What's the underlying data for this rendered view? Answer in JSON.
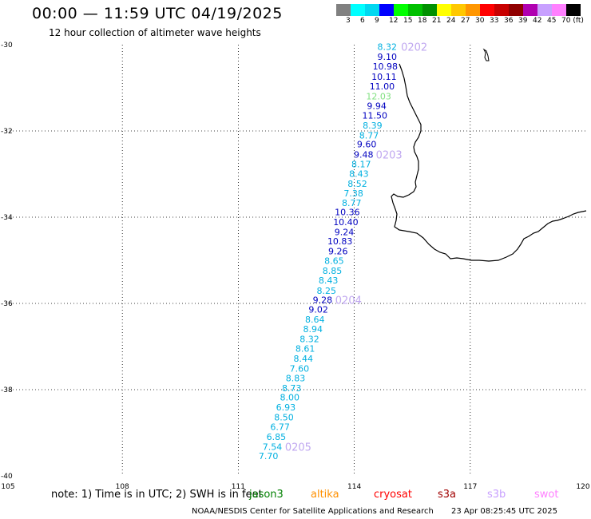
{
  "header": {
    "title": "00:00 — 11:59 UTC 04/19/2025",
    "subtitle": "12 hour collection of altimeter wave heights"
  },
  "color_scale": {
    "colors": [
      "#808080",
      "#00ffff",
      "#00d8f0",
      "#0000ff",
      "#00ff00",
      "#00c000",
      "#009000",
      "#ffff00",
      "#ffc800",
      "#ff9600",
      "#ff0000",
      "#c80000",
      "#900000",
      "#b000b0",
      "#c8a0ff",
      "#ff80ff",
      "#000000"
    ],
    "labels": [
      "3",
      "6",
      "9",
      "12",
      "15",
      "18",
      "21",
      "24",
      "27",
      "30",
      "33",
      "36",
      "39",
      "42",
      "45",
      "70 (ft)"
    ]
  },
  "axes": {
    "lon_labels": [
      "105",
      "108",
      "111",
      "114",
      "117",
      "120"
    ],
    "lat_labels": [
      "-30",
      "-32",
      "-34",
      "-36",
      "-38",
      "-40"
    ]
  },
  "track": {
    "labels": [
      {
        "text": "8.32",
        "color": "#00b0e0",
        "lat": -30.05,
        "lon": 114.85
      },
      {
        "text": "9.10",
        "color": "#0000c0",
        "lat": -30.28,
        "lon": 114.85
      },
      {
        "text": "10.98",
        "color": "#0000c0",
        "lat": -30.5,
        "lon": 114.8
      },
      {
        "text": "10.11",
        "color": "#0000c0",
        "lat": -30.74,
        "lon": 114.77
      },
      {
        "text": "11.00",
        "color": "#0000c0",
        "lat": -30.96,
        "lon": 114.72
      },
      {
        "text": "12.03",
        "color": "#80e080",
        "lat": -31.19,
        "lon": 114.63
      },
      {
        "text": "9.94",
        "color": "#0000c0",
        "lat": -31.42,
        "lon": 114.58
      },
      {
        "text": "11.50",
        "color": "#0000c0",
        "lat": -31.64,
        "lon": 114.53
      },
      {
        "text": "8.39",
        "color": "#00b0e0",
        "lat": -31.87,
        "lon": 114.47
      },
      {
        "text": "8.77",
        "color": "#00b0e0",
        "lat": -32.1,
        "lon": 114.38
      },
      {
        "text": "9.60",
        "color": "#0000c0",
        "lat": -32.31,
        "lon": 114.32
      },
      {
        "text": "9.48",
        "color": "#0000c0",
        "lat": -32.55,
        "lon": 114.24
      },
      {
        "text": "8.17",
        "color": "#00b0e0",
        "lat": -32.77,
        "lon": 114.18
      },
      {
        "text": "8.43",
        "color": "#00b0e0",
        "lat": -32.99,
        "lon": 114.12
      },
      {
        "text": "8.52",
        "color": "#00b0e0",
        "lat": -33.22,
        "lon": 114.08
      },
      {
        "text": "7.38",
        "color": "#00b0e0",
        "lat": -33.44,
        "lon": 113.98
      },
      {
        "text": "8.77",
        "color": "#00b0e0",
        "lat": -33.67,
        "lon": 113.93
      },
      {
        "text": "10.36",
        "color": "#0000c0",
        "lat": -33.88,
        "lon": 113.82
      },
      {
        "text": "10.40",
        "color": "#0000c0",
        "lat": -34.11,
        "lon": 113.78
      },
      {
        "text": "9.24",
        "color": "#0000c0",
        "lat": -34.34,
        "lon": 113.74
      },
      {
        "text": "10.83",
        "color": "#0000c0",
        "lat": -34.56,
        "lon": 113.63
      },
      {
        "text": "9.26",
        "color": "#0000c0",
        "lat": -34.79,
        "lon": 113.58
      },
      {
        "text": "8.65",
        "color": "#00b0e0",
        "lat": -35.01,
        "lon": 113.48
      },
      {
        "text": "8.85",
        "color": "#00b0e0",
        "lat": -35.24,
        "lon": 113.43
      },
      {
        "text": "8.43",
        "color": "#00b0e0",
        "lat": -35.46,
        "lon": 113.33
      },
      {
        "text": "8.25",
        "color": "#00b0e0",
        "lat": -35.7,
        "lon": 113.28
      },
      {
        "text": "9.28",
        "color": "#0000c0",
        "lat": -35.92,
        "lon": 113.18
      },
      {
        "text": "9.02",
        "color": "#0000c0",
        "lat": -36.14,
        "lon": 113.07
      },
      {
        "text": "8.64",
        "color": "#00b0e0",
        "lat": -36.37,
        "lon": 112.98
      },
      {
        "text": "8.94",
        "color": "#00b0e0",
        "lat": -36.59,
        "lon": 112.93
      },
      {
        "text": "8.32",
        "color": "#00b0e0",
        "lat": -36.82,
        "lon": 112.84
      },
      {
        "text": "8.61",
        "color": "#00b0e0",
        "lat": -37.05,
        "lon": 112.73
      },
      {
        "text": "8.44",
        "color": "#00b0e0",
        "lat": -37.28,
        "lon": 112.68
      },
      {
        "text": "7.60",
        "color": "#00b0e0",
        "lat": -37.51,
        "lon": 112.58
      },
      {
        "text": "8.83",
        "color": "#00b0e0",
        "lat": -37.73,
        "lon": 112.48
      },
      {
        "text": "8.73",
        "color": "#00b0e0",
        "lat": -37.96,
        "lon": 112.38
      },
      {
        "text": "8.00",
        "color": "#00b0e0",
        "lat": -38.18,
        "lon": 112.33
      },
      {
        "text": "6.93",
        "color": "#00b0e0",
        "lat": -38.41,
        "lon": 112.23
      },
      {
        "text": "8.50",
        "color": "#00b0e0",
        "lat": -38.64,
        "lon": 112.18
      },
      {
        "text": "6.77",
        "color": "#00b0e0",
        "lat": -38.86,
        "lon": 112.08
      },
      {
        "text": "6.85",
        "color": "#00b0e0",
        "lat": -39.09,
        "lon": 111.98
      },
      {
        "text": "7.54",
        "color": "#00b0e0",
        "lat": -39.32,
        "lon": 111.88
      },
      {
        "text": "7.70",
        "color": "#00b0e0",
        "lat": -39.54,
        "lon": 111.78
      }
    ],
    "time_marks": [
      {
        "text": "0202",
        "lat": -30.05,
        "lon": 115.55
      },
      {
        "text": "0203",
        "lat": -32.55,
        "lon": 114.9
      },
      {
        "text": "0204",
        "lat": -35.92,
        "lon": 113.85
      },
      {
        "text": "0205",
        "lat": -39.32,
        "lon": 112.55
      }
    ]
  },
  "footer": {
    "note": "note:  1) Time is in UTC;  2) SWH is in feet",
    "satellites": [
      {
        "name": "jason3",
        "color": "#008000"
      },
      {
        "name": "altika",
        "color": "#ff9000"
      },
      {
        "name": "cryosat",
        "color": "#ff0000"
      },
      {
        "name": "s3a",
        "color": "#a00000"
      },
      {
        "name": "s3b",
        "color": "#c8a0ff"
      },
      {
        "name": "swot",
        "color": "#ff80ff"
      }
    ],
    "credit": "NOAA/NESDIS Center for Satellite Applications and Research",
    "timestamp": "23 Apr 08:25:45 UTC 2025"
  }
}
